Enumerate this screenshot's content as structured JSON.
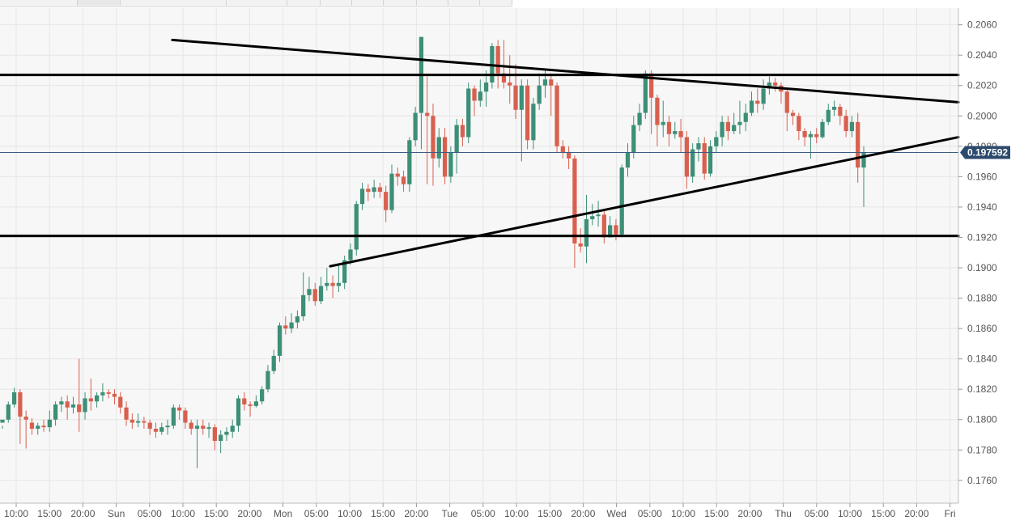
{
  "colors": {
    "plot_bg": "#f7f7f7",
    "grid": "#e6e6e6",
    "up": "#3d8f77",
    "down": "#d8604f",
    "price_line": "#3c5c84",
    "price_badge": "#2c4a6e",
    "trendline": "#000000"
  },
  "chart_data": {
    "type": "candlestick",
    "y_ticks": [
      "0.2060",
      "0.2040",
      "0.2020",
      "0.2000",
      "0.1980",
      "0.1960",
      "0.1940",
      "0.1920",
      "0.1900",
      "0.1880",
      "0.1860",
      "0.1840",
      "0.1820",
      "0.1800",
      "0.1780",
      "0.1760"
    ],
    "y_range": [
      0.1745,
      0.2071
    ],
    "x_ticks": [
      "10:00",
      "15:00",
      "20:00",
      "Sun",
      "05:00",
      "10:00",
      "15:00",
      "20:00",
      "Mon",
      "05:00",
      "10:00",
      "15:00",
      "20:00",
      "Tue",
      "05:00",
      "10:00",
      "15:00",
      "20:00",
      "Wed",
      "05:00",
      "10:00",
      "15:00",
      "20:00",
      "Thu",
      "05:00",
      "10:00",
      "15:00",
      "20:00",
      "Fri"
    ],
    "current_price": 0.197592,
    "current_price_label": "0.197592",
    "candles": [
      [
        0.1798,
        0.18,
        0.1796,
        0.1794
      ],
      [
        0.18,
        0.181,
        0.1812,
        0.1798
      ],
      [
        0.181,
        0.1818,
        0.1821,
        0.1808
      ],
      [
        0.1818,
        0.1802,
        0.182,
        0.1784
      ],
      [
        0.1802,
        0.18,
        0.1806,
        0.1781
      ],
      [
        0.1798,
        0.1794,
        0.1801,
        0.179
      ],
      [
        0.1794,
        0.1796,
        0.1798,
        0.179
      ],
      [
        0.1796,
        0.1795,
        0.18,
        0.1792
      ],
      [
        0.1795,
        0.18,
        0.1806,
        0.1792
      ],
      [
        0.18,
        0.181,
        0.1812,
        0.1796
      ],
      [
        0.181,
        0.1812,
        0.1815,
        0.1805
      ],
      [
        0.1812,
        0.1808,
        0.1816,
        0.18
      ],
      [
        0.1808,
        0.181,
        0.1815,
        0.1804
      ],
      [
        0.181,
        0.1805,
        0.184,
        0.1792
      ],
      [
        0.1805,
        0.1814,
        0.1818,
        0.18
      ],
      [
        0.1814,
        0.1812,
        0.1827,
        0.1806
      ],
      [
        0.1812,
        0.1816,
        0.1818,
        0.1808
      ],
      [
        0.1816,
        0.1818,
        0.1824,
        0.1812
      ],
      [
        0.1818,
        0.1817,
        0.182,
        0.1814
      ],
      [
        0.1817,
        0.1815,
        0.182,
        0.181
      ],
      [
        0.1815,
        0.1808,
        0.1818,
        0.1804
      ],
      [
        0.1808,
        0.18,
        0.1812,
        0.1796
      ],
      [
        0.18,
        0.1798,
        0.1804,
        0.1794
      ],
      [
        0.1798,
        0.1799,
        0.1804,
        0.1795
      ],
      [
        0.1799,
        0.1798,
        0.1802,
        0.1794
      ],
      [
        0.1798,
        0.1794,
        0.18,
        0.179
      ],
      [
        0.1794,
        0.1792,
        0.1798,
        0.1788
      ],
      [
        0.1792,
        0.1795,
        0.1798,
        0.179
      ],
      [
        0.1795,
        0.1796,
        0.18,
        0.179
      ],
      [
        0.1796,
        0.1808,
        0.181,
        0.1794
      ],
      [
        0.1808,
        0.1806,
        0.181,
        0.18
      ],
      [
        0.1806,
        0.1798,
        0.1808,
        0.1794
      ],
      [
        0.1798,
        0.1794,
        0.18,
        0.179
      ],
      [
        0.1794,
        0.1796,
        0.18,
        0.1768
      ],
      [
        0.1796,
        0.1794,
        0.18,
        0.179
      ],
      [
        0.1794,
        0.1795,
        0.1798,
        0.1788
      ],
      [
        0.1795,
        0.1786,
        0.1797,
        0.178
      ],
      [
        0.1786,
        0.179,
        0.1793,
        0.1778
      ],
      [
        0.179,
        0.1792,
        0.1795,
        0.1786
      ],
      [
        0.1792,
        0.1796,
        0.18,
        0.1788
      ],
      [
        0.1796,
        0.1814,
        0.1816,
        0.1792
      ],
      [
        0.1814,
        0.181,
        0.1818,
        0.1806
      ],
      [
        0.181,
        0.1809,
        0.1812,
        0.1802
      ],
      [
        0.1809,
        0.1812,
        0.1816,
        0.1808
      ],
      [
        0.1812,
        0.182,
        0.1822,
        0.181
      ],
      [
        0.182,
        0.1832,
        0.1836,
        0.1818
      ],
      [
        0.1832,
        0.1842,
        0.1846,
        0.183
      ],
      [
        0.1842,
        0.1862,
        0.1864,
        0.1838
      ],
      [
        0.1862,
        0.186,
        0.1868,
        0.1856
      ],
      [
        0.186,
        0.1864,
        0.187,
        0.1857
      ],
      [
        0.1864,
        0.1868,
        0.1872,
        0.186
      ],
      [
        0.1868,
        0.1882,
        0.1897,
        0.1865
      ],
      [
        0.1882,
        0.1886,
        0.1894,
        0.1878
      ],
      [
        0.1886,
        0.1878,
        0.189,
        0.1875
      ],
      [
        0.1878,
        0.1888,
        0.1894,
        0.1876
      ],
      [
        0.1888,
        0.189,
        0.19,
        0.1885
      ],
      [
        0.189,
        0.1888,
        0.1895,
        0.188
      ],
      [
        0.1888,
        0.189,
        0.1902,
        0.1884
      ],
      [
        0.189,
        0.1905,
        0.1908,
        0.1886
      ],
      [
        0.1905,
        0.1912,
        0.1916,
        0.1902
      ],
      [
        0.1912,
        0.1942,
        0.1944,
        0.1908
      ],
      [
        0.1942,
        0.1952,
        0.1956,
        0.1938
      ],
      [
        0.1952,
        0.195,
        0.1955,
        0.1944
      ],
      [
        0.195,
        0.1953,
        0.1958,
        0.1946
      ],
      [
        0.1953,
        0.195,
        0.1956,
        0.1946
      ],
      [
        0.195,
        0.1938,
        0.1954,
        0.193
      ],
      [
        0.1938,
        0.1962,
        0.1968,
        0.1936
      ],
      [
        0.1962,
        0.196,
        0.1966,
        0.1954
      ],
      [
        0.196,
        0.1955,
        0.1964,
        0.195
      ],
      [
        0.1955,
        0.1984,
        0.1986,
        0.195
      ],
      [
        0.1984,
        0.2002,
        0.2006,
        0.198
      ],
      [
        0.2002,
        0.2052,
        0.2052,
        0.1978
      ],
      [
        0.2002,
        0.2,
        0.2026,
        0.1955
      ],
      [
        0.2,
        0.1972,
        0.2008,
        0.1954
      ],
      [
        0.1972,
        0.1986,
        0.1992,
        0.1966
      ],
      [
        0.1986,
        0.196,
        0.1992,
        0.1955
      ],
      [
        0.196,
        0.1976,
        0.198,
        0.1956
      ],
      [
        0.1976,
        0.1994,
        0.1998,
        0.1962
      ],
      [
        0.1994,
        0.1986,
        0.1998,
        0.198
      ],
      [
        0.1986,
        0.2018,
        0.2022,
        0.1982
      ],
      [
        0.2018,
        0.201,
        0.202,
        0.2
      ],
      [
        0.201,
        0.2016,
        0.2024,
        0.2006
      ],
      [
        0.2016,
        0.2022,
        0.203,
        0.2006
      ],
      [
        0.2022,
        0.2046,
        0.2048,
        0.2018
      ],
      [
        0.2046,
        0.2028,
        0.205,
        0.2018
      ],
      [
        0.2028,
        0.2022,
        0.205,
        0.2018
      ],
      [
        0.2022,
        0.202,
        0.204,
        0.2008
      ],
      [
        0.202,
        0.2004,
        0.2034,
        0.1998
      ],
      [
        0.2004,
        0.202,
        0.2024,
        0.197
      ],
      [
        0.202,
        0.1984,
        0.2024,
        0.1978
      ],
      [
        0.1984,
        0.2008,
        0.2012,
        0.1978
      ],
      [
        0.2008,
        0.202,
        0.2028,
        0.2004
      ],
      [
        0.202,
        0.2024,
        0.203,
        0.2012
      ],
      [
        0.2024,
        0.202,
        0.2028,
        0.2
      ],
      [
        0.202,
        0.198,
        0.2022,
        0.1976
      ],
      [
        0.198,
        0.1976,
        0.1984,
        0.1972
      ],
      [
        0.1976,
        0.1972,
        0.198,
        0.1965
      ],
      [
        0.1972,
        0.1916,
        0.1974,
        0.19
      ],
      [
        0.1916,
        0.1914,
        0.1926,
        0.191
      ],
      [
        0.1914,
        0.1932,
        0.1948,
        0.1903
      ],
      [
        0.1932,
        0.1934,
        0.1942,
        0.1928
      ],
      [
        0.1934,
        0.1935,
        0.1944,
        0.1927
      ],
      [
        0.1935,
        0.192,
        0.1938,
        0.1916
      ],
      [
        0.192,
        0.1928,
        0.1934,
        0.192
      ],
      [
        0.1928,
        0.1922,
        0.1932,
        0.1918
      ],
      [
        0.1922,
        0.1966,
        0.1968,
        0.192
      ],
      [
        0.1966,
        0.1976,
        0.1982,
        0.196
      ],
      [
        0.1976,
        0.1994,
        0.2,
        0.1972
      ],
      [
        0.1994,
        0.2002,
        0.2008,
        0.199
      ],
      [
        0.2002,
        0.2028,
        0.203,
        0.1998
      ],
      [
        0.2028,
        0.2012,
        0.203,
        0.1988
      ],
      [
        0.2012,
        0.1994,
        0.2014,
        0.198
      ],
      [
        0.1994,
        0.1996,
        0.201,
        0.1986
      ],
      [
        0.1996,
        0.1988,
        0.2,
        0.198
      ],
      [
        0.1988,
        0.199,
        0.1996,
        0.1985
      ],
      [
        0.199,
        0.1986,
        0.1998,
        0.1976
      ],
      [
        0.1986,
        0.196,
        0.199,
        0.1952
      ],
      [
        0.196,
        0.1978,
        0.1982,
        0.1956
      ],
      [
        0.1978,
        0.1982,
        0.1986,
        0.197
      ],
      [
        0.1982,
        0.1962,
        0.1986,
        0.1958
      ],
      [
        0.1962,
        0.198,
        0.1984,
        0.196
      ],
      [
        0.198,
        0.1986,
        0.199,
        0.1976
      ],
      [
        0.1986,
        0.1996,
        0.2,
        0.198
      ],
      [
        0.1996,
        0.199,
        0.2,
        0.1984
      ],
      [
        0.199,
        0.1994,
        0.2002,
        0.1988
      ],
      [
        0.1994,
        0.1996,
        0.201,
        0.1988
      ],
      [
        0.1996,
        0.2002,
        0.2008,
        0.199
      ],
      [
        0.2002,
        0.201,
        0.2016,
        0.2
      ],
      [
        0.201,
        0.2008,
        0.2018,
        0.2002
      ],
      [
        0.2008,
        0.2018,
        0.2024,
        0.2004
      ],
      [
        0.2018,
        0.2022,
        0.2026,
        0.2014
      ],
      [
        0.2022,
        0.202,
        0.2025,
        0.2016
      ],
      [
        0.202,
        0.2016,
        0.2022,
        0.2008
      ],
      [
        0.2016,
        0.2002,
        0.2018,
        0.199
      ],
      [
        0.2002,
        0.2,
        0.2004,
        0.1994
      ],
      [
        0.2,
        0.199,
        0.2002,
        0.1984
      ],
      [
        0.199,
        0.1986,
        0.1992,
        0.198
      ],
      [
        0.1986,
        0.1988,
        0.199,
        0.1972
      ],
      [
        0.1988,
        0.1986,
        0.1992,
        0.1982
      ],
      [
        0.1986,
        0.1996,
        0.1998,
        0.1985
      ],
      [
        0.1996,
        0.2004,
        0.2008,
        0.1994
      ],
      [
        0.2004,
        0.2006,
        0.201,
        0.2
      ],
      [
        0.2006,
        0.2,
        0.2008,
        0.1994
      ],
      [
        0.2,
        0.199,
        0.2004,
        0.1986
      ],
      [
        0.199,
        0.1996,
        0.2,
        0.1986
      ],
      [
        0.1996,
        0.1966,
        0.2002,
        0.1956
      ],
      [
        0.1966,
        0.1976,
        0.198,
        0.194
      ]
    ],
    "trendlines": [
      {
        "x1": 0.1798,
        "y1": 0.205,
        "x2": 1.0,
        "y2": 0.2009
      },
      {
        "x1": 0.3445,
        "y1": 0.1901,
        "x2": 1.0,
        "y2": 0.1986
      },
      {
        "x1": 0.0,
        "y1": 0.2027,
        "x2": 1.0,
        "y2": 0.2027
      },
      {
        "x1": 0.0,
        "y1": 0.1921,
        "x2": 1.0,
        "y2": 0.1921
      }
    ]
  }
}
